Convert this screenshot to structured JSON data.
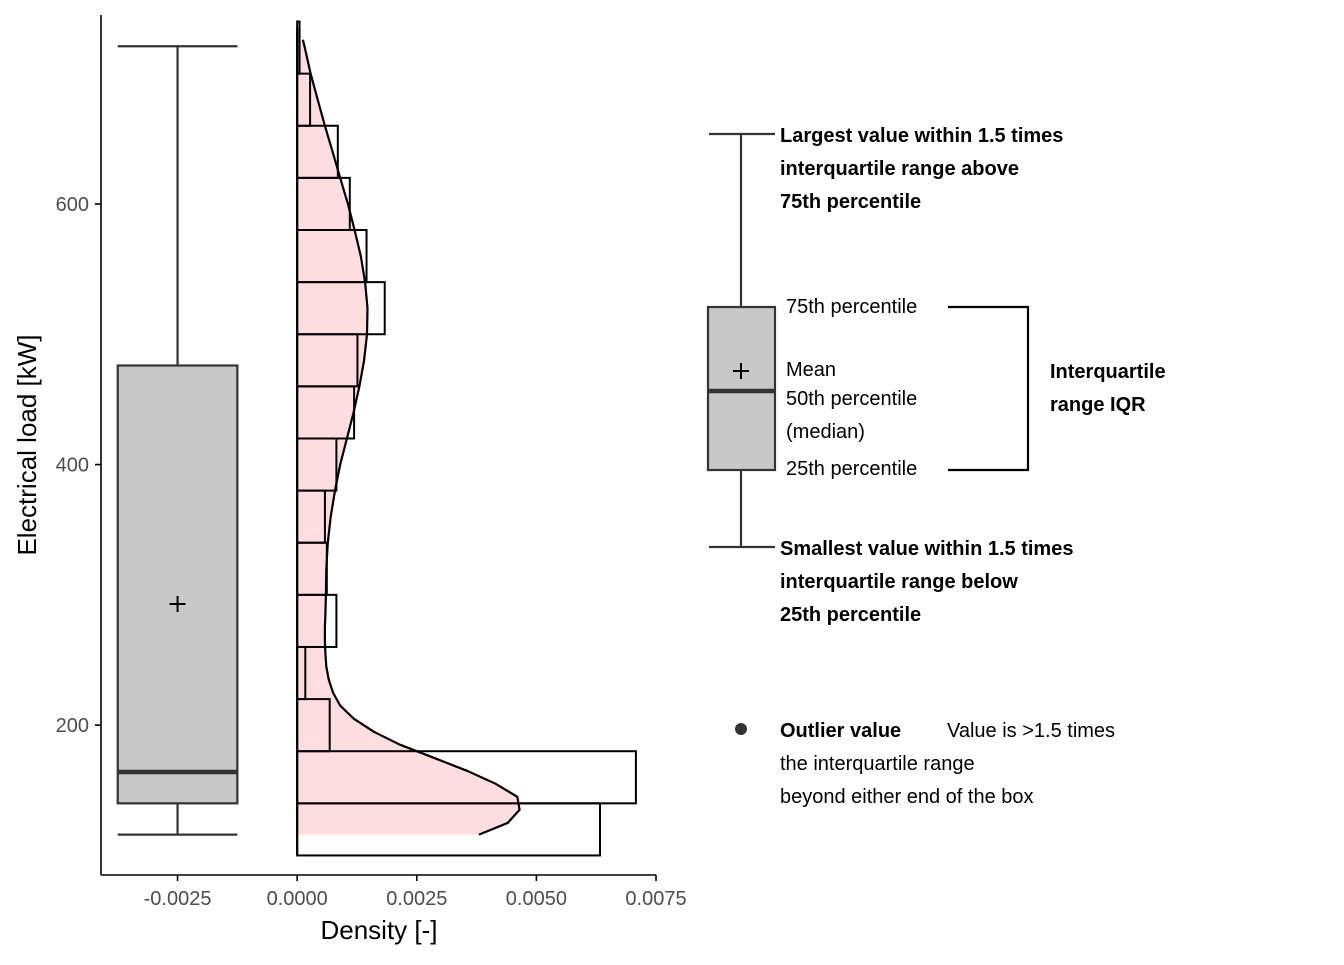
{
  "chart_data": {
    "type": "histogram-boxplot",
    "xlabel": "Density [-]",
    "ylabel": "Electrical load [kW]",
    "xlim": [
      -0.0041,
      0.0075
    ],
    "ylim": [
      85,
      745
    ],
    "x_ticks": [
      -0.0025,
      0.0,
      0.0025,
      0.005,
      0.0075
    ],
    "x_tick_labels": [
      "-0.0025",
      "0.0000",
      "0.0025",
      "0.0050",
      "0.0075"
    ],
    "y_ticks": [
      200,
      400,
      600
    ],
    "y_tick_labels": [
      "200",
      "400",
      "600"
    ],
    "grid": false,
    "colors": {
      "box_fill": "#c8c8c8",
      "density_fill": "#ffdde1",
      "line": "#000000"
    },
    "boxplot": {
      "x_center": -0.0025,
      "x_range": [
        -0.00375,
        -0.00125
      ],
      "whisker_low": 116,
      "q1": 140,
      "median": 164,
      "q3": 476,
      "whisker_high": 721,
      "mean": 293
    },
    "histogram": {
      "bin_width": 40,
      "bins": [
        {
          "lo": 100,
          "hi": 140,
          "density": 0.00633
        },
        {
          "lo": 140,
          "hi": 180,
          "density": 0.00708
        },
        {
          "lo": 180,
          "hi": 220,
          "density": 0.00068
        },
        {
          "lo": 220,
          "hi": 260,
          "density": 0.00017
        },
        {
          "lo": 260,
          "hi": 300,
          "density": 0.00082
        },
        {
          "lo": 300,
          "hi": 340,
          "density": 0.00062
        },
        {
          "lo": 340,
          "hi": 380,
          "density": 0.00058
        },
        {
          "lo": 380,
          "hi": 420,
          "density": 0.00082
        },
        {
          "lo": 420,
          "hi": 460,
          "density": 0.00119
        },
        {
          "lo": 460,
          "hi": 500,
          "density": 0.00126
        },
        {
          "lo": 500,
          "hi": 540,
          "density": 0.00183
        },
        {
          "lo": 540,
          "hi": 580,
          "density": 0.00145
        },
        {
          "lo": 580,
          "hi": 620,
          "density": 0.0011
        },
        {
          "lo": 620,
          "hi": 660,
          "density": 0.00085
        },
        {
          "lo": 660,
          "hi": 700,
          "density": 0.00027
        },
        {
          "lo": 700,
          "hi": 740,
          "density": 5e-05
        }
      ]
    },
    "density_curve": {
      "y": [
        116,
        125,
        135,
        145,
        155,
        165,
        175,
        185,
        195,
        205,
        215,
        225,
        235,
        245,
        255,
        265,
        275,
        285,
        300,
        320,
        340,
        360,
        380,
        400,
        420,
        440,
        460,
        480,
        500,
        520,
        540,
        560,
        580,
        600,
        620,
        640,
        660,
        680,
        700,
        720,
        726
      ],
      "x": [
        0.0038,
        0.0044,
        0.00465,
        0.0046,
        0.00415,
        0.00355,
        0.00285,
        0.00215,
        0.0016,
        0.00118,
        0.0009,
        0.00075,
        0.00066,
        0.00061,
        0.00059,
        0.00058,
        0.00058,
        0.00059,
        0.0006,
        0.00061,
        0.00064,
        0.0007,
        0.00079,
        0.0009,
        0.00104,
        0.00118,
        0.0013,
        0.0014,
        0.00146,
        0.00147,
        0.00142,
        0.00133,
        0.0012,
        0.00106,
        0.0009,
        0.00074,
        0.00058,
        0.00043,
        0.00028,
        0.00016,
        0.00012
      ]
    }
  },
  "legend_key": {
    "whisker_high_label": [
      "Largest value within 1.5 times",
      "interquartile range above",
      "75th percentile"
    ],
    "q3_label": "75th percentile",
    "mean_label": "Mean",
    "median_label": [
      "50th percentile",
      "(median)"
    ],
    "q1_label": "25th percentile",
    "iqr_label": [
      "Interquartile",
      "range IQR"
    ],
    "whisker_low_label": [
      "Smallest value within 1.5 times",
      "interquartile range below",
      "25th percentile"
    ],
    "outlier_title": "Outlier value",
    "outlier_desc": [
      "Value is >1.5 times",
      "the interquartile range",
      "beyond either end of the box"
    ]
  }
}
